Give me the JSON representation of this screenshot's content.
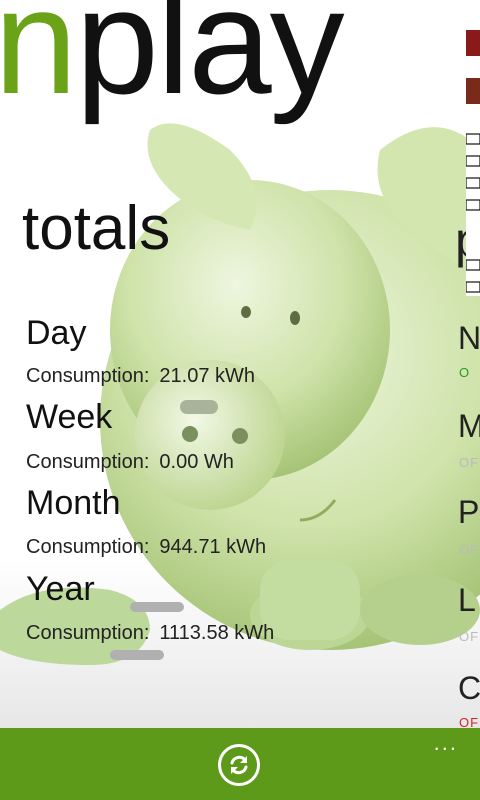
{
  "app": {
    "pano_title_accent": "n",
    "pano_title": "play"
  },
  "totals": {
    "title": "totals",
    "consumption_label": "Consumption:",
    "rows": [
      {
        "period": "Day",
        "value": "21.07 kWh"
      },
      {
        "period": "Week",
        "value": "0.00 Wh"
      },
      {
        "period": "Month",
        "value": "944.71 kWh"
      },
      {
        "period": "Year",
        "value": "1113.58 kWh"
      }
    ]
  },
  "next_panel": {
    "title_letter": "p",
    "items": [
      {
        "letter": "N",
        "sub": "O"
      },
      {
        "letter": "M",
        "sub": "OF"
      },
      {
        "letter": "P",
        "sub": "OF"
      },
      {
        "letter": "L",
        "sub": "OF"
      },
      {
        "letter": "C",
        "sub": "OF"
      }
    ]
  },
  "appbar": {
    "refresh_icon": "refresh-icon",
    "more_label": "..."
  },
  "colors": {
    "accent": "#6aa317",
    "appbar": "#5e9a1a",
    "pig": "#c9e0a4"
  }
}
